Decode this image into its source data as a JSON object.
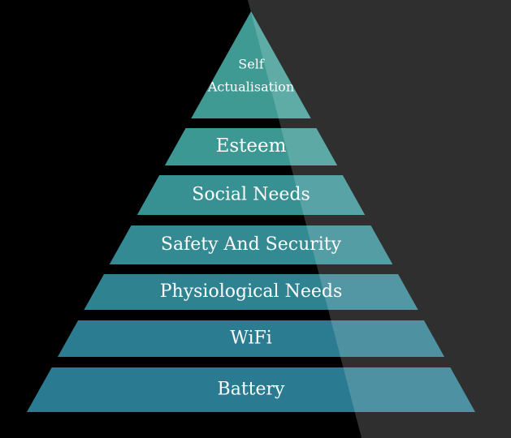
{
  "background": {
    "dark": "#000000",
    "right_panel": "#2f2f2f"
  },
  "pyramid": {
    "tiers": [
      {
        "label_lines": [
          "Self",
          "Actualisation"
        ],
        "color": "#3f9a93"
      },
      {
        "label_lines": [
          "Esteem"
        ],
        "color": "#3c9893"
      },
      {
        "label_lines": [
          "Social Needs"
        ],
        "color": "#379193"
      },
      {
        "label_lines": [
          "Safety And Security"
        ],
        "color": "#338a92"
      },
      {
        "label_lines": [
          "Physiological Needs"
        ],
        "color": "#2f8391"
      },
      {
        "label_lines": [
          "WiFi"
        ],
        "color": "#2b7c90"
      },
      {
        "label_lines": [
          "Battery"
        ],
        "color": "#2a7b91",
        "text_color": "#e08a3c"
      }
    ]
  }
}
